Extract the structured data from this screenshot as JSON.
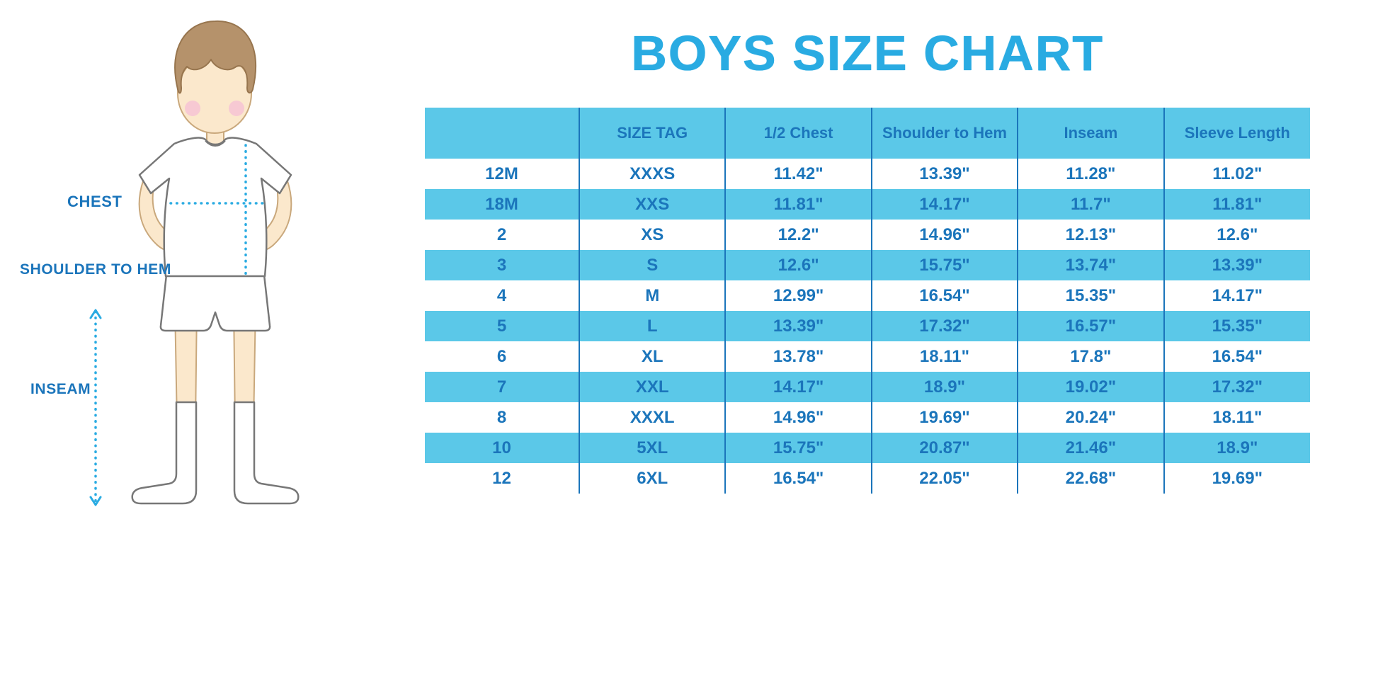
{
  "title": "BOYS SIZE CHART",
  "diagram": {
    "labels": {
      "chest": "CHEST",
      "shoulder_to_hem": "SHOULDER TO HEM",
      "inseam": "INSEAM"
    }
  },
  "table": {
    "columns": [
      "",
      "SIZE TAG",
      "1/2 Chest",
      "Shoulder to Hem",
      "Inseam",
      "Sleeve Length"
    ],
    "rows": [
      [
        "12M",
        "XXXS",
        "11.42\"",
        "13.39\"",
        "11.28\"",
        "11.02\""
      ],
      [
        "18M",
        "XXS",
        "11.81\"",
        "14.17\"",
        "11.7\"",
        "11.81\""
      ],
      [
        "2",
        "XS",
        "12.2\"",
        "14.96\"",
        "12.13\"",
        "12.6\""
      ],
      [
        "3",
        "S",
        "12.6\"",
        "15.75\"",
        "13.74\"",
        "13.39\""
      ],
      [
        "4",
        "M",
        "12.99\"",
        "16.54\"",
        "15.35\"",
        "14.17\""
      ],
      [
        "5",
        "L",
        "13.39\"",
        "17.32\"",
        "16.57\"",
        "15.35\""
      ],
      [
        "6",
        "XL",
        "13.78\"",
        "18.11\"",
        "17.8\"",
        "16.54\""
      ],
      [
        "7",
        "XXL",
        "14.17\"",
        "18.9\"",
        "19.02\"",
        "17.32\""
      ],
      [
        "8",
        "XXXL",
        "14.96\"",
        "19.69\"",
        "20.24\"",
        "18.11\""
      ],
      [
        "10",
        "5XL",
        "15.75\"",
        "20.87\"",
        "21.46\"",
        "18.9\""
      ],
      [
        "12",
        "6XL",
        "16.54\"",
        "22.05\"",
        "22.68\"",
        "19.69\""
      ]
    ]
  },
  "colors": {
    "title_cyan": "#29ABE2",
    "band_cyan": "#5BC8E8",
    "text_blue": "#1B75BB",
    "divider_blue": "#1B75BB",
    "measure_line_cyan": "#29ABE2"
  }
}
